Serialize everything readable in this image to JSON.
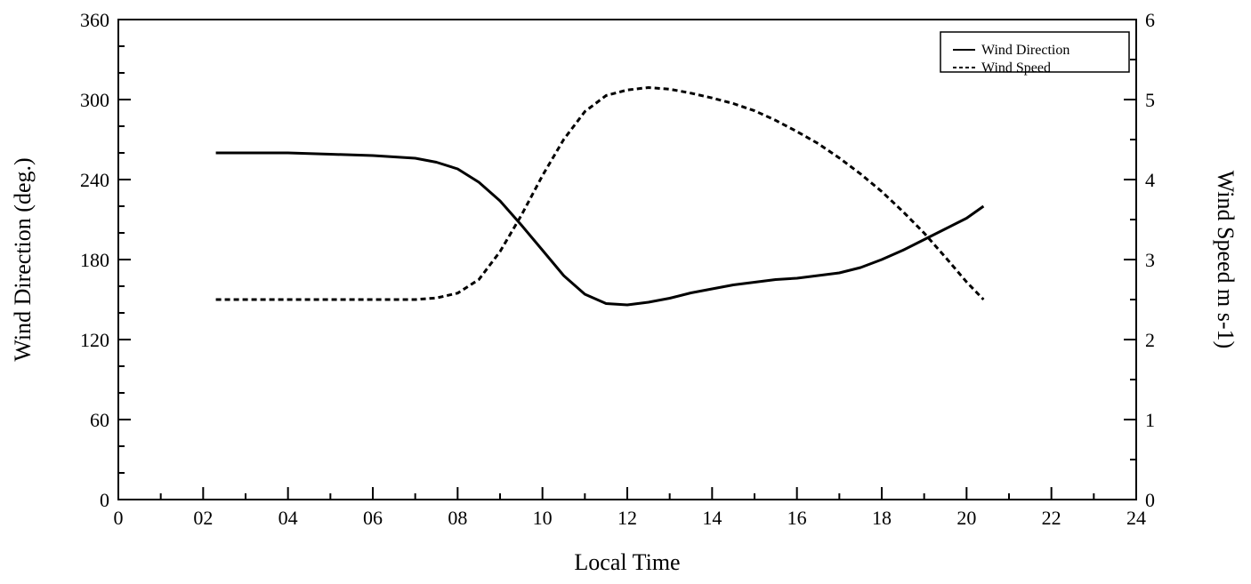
{
  "chart_data": {
    "type": "line",
    "title": "",
    "xlabel": "Local Time",
    "ylabel_left": "Wind Direction (deg.)",
    "ylabel_right": "Wind Speed m s-1)",
    "xlim": [
      0,
      24
    ],
    "ylim_left": [
      0,
      360
    ],
    "ylim_right": [
      0,
      6
    ],
    "x_ticks": [
      "0",
      "02",
      "04",
      "06",
      "08",
      "10",
      "12",
      "14",
      "16",
      "18",
      "20",
      "22",
      "24"
    ],
    "y_left_ticks": [
      "0",
      "60",
      "120",
      "180",
      "240",
      "300",
      "360"
    ],
    "y_right_ticks": [
      "0",
      "1",
      "2",
      "3",
      "4",
      "5",
      "6"
    ],
    "grid": false,
    "legend_position": "top-right",
    "series": [
      {
        "name": "Wind Direction",
        "axis": "left",
        "style": "solid",
        "x": [
          2.3,
          3,
          4,
          5,
          6,
          7,
          7.5,
          8,
          8.5,
          9,
          9.5,
          10,
          10.5,
          11,
          11.5,
          12,
          12.5,
          13,
          13.5,
          14,
          14.5,
          15,
          15.5,
          16,
          16.5,
          17,
          17.5,
          18,
          18.5,
          19,
          19.5,
          20,
          20.4
        ],
        "y": [
          260,
          260,
          260,
          259,
          258,
          256,
          253,
          248,
          238,
          224,
          206,
          187,
          168,
          154,
          147,
          146,
          148,
          151,
          155,
          158,
          161,
          163,
          165,
          166,
          168,
          170,
          174,
          180,
          187,
          195,
          203,
          211,
          220
        ]
      },
      {
        "name": "Wind Speed",
        "axis": "right",
        "style": "dashed",
        "x": [
          2.3,
          3,
          4,
          5,
          6,
          7,
          7.5,
          8,
          8.5,
          9,
          9.5,
          10,
          10.5,
          11,
          11.5,
          12,
          12.5,
          13,
          13.5,
          14,
          14.5,
          15,
          15.5,
          16,
          16.5,
          17,
          17.5,
          18,
          18.5,
          19,
          19.5,
          20,
          20.4
        ],
        "y": [
          2.5,
          2.5,
          2.5,
          2.5,
          2.5,
          2.5,
          2.52,
          2.58,
          2.75,
          3.1,
          3.55,
          4.05,
          4.5,
          4.85,
          5.05,
          5.12,
          5.15,
          5.13,
          5.08,
          5.02,
          4.95,
          4.86,
          4.74,
          4.6,
          4.45,
          4.27,
          4.07,
          3.85,
          3.6,
          3.33,
          3.03,
          2.72,
          2.5
        ]
      }
    ]
  }
}
